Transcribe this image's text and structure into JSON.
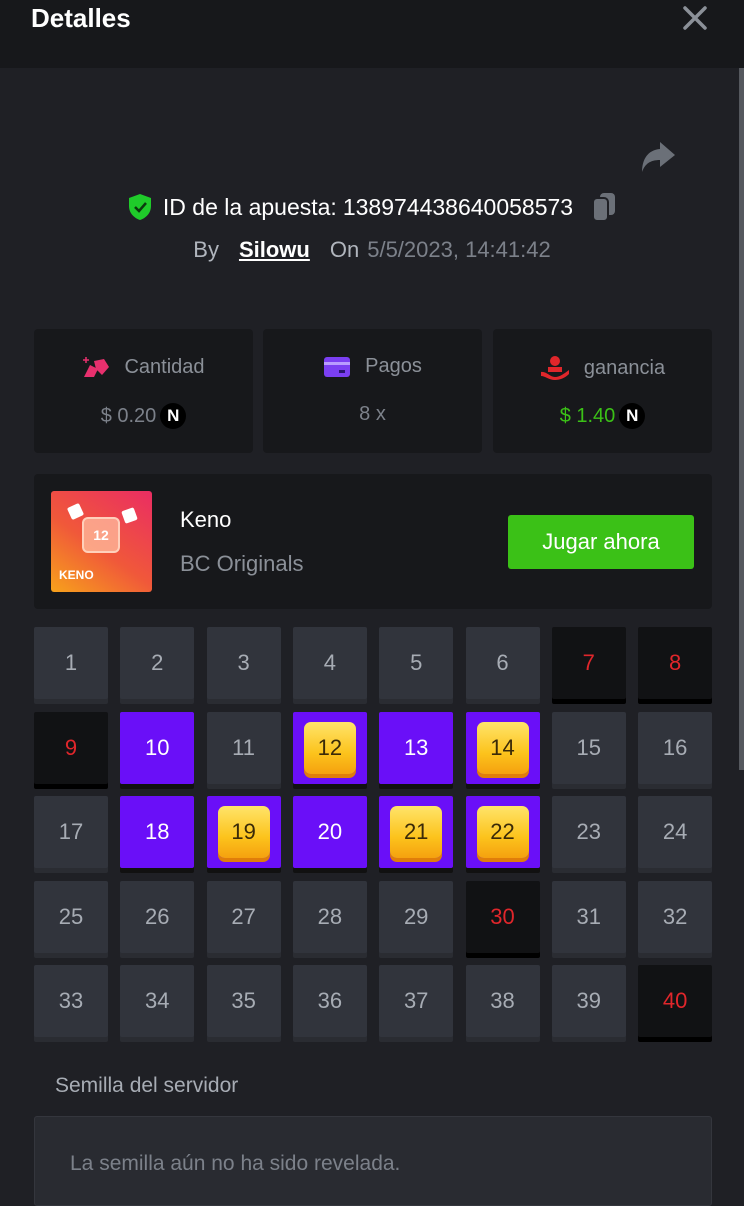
{
  "header": {
    "title": "Detalles",
    "close_icon": "close-icon"
  },
  "bet": {
    "id_label": "ID de la apuesta:",
    "id": "138974438640058573",
    "by_label": "By",
    "user": "Silowu",
    "on_label": "On",
    "date": "5/5/2023, 14:41:42"
  },
  "stats": [
    {
      "label": "Cantidad",
      "value": "$ 0.20",
      "coin": "N",
      "icon": "bet-amount-icon",
      "color": "#e8306e",
      "value_color": "#7c818a"
    },
    {
      "label": "Pagos",
      "value": "8 x",
      "icon": "payout-card-icon",
      "color": "#7b3ff2",
      "value_color": "#7c818a"
    },
    {
      "label": "ganancia",
      "value": "$ 1.40",
      "coin": "N",
      "icon": "profit-hand-icon",
      "color": "#e0262b",
      "value_color": "#3bc117"
    }
  ],
  "game": {
    "name": "Keno",
    "provider": "BC Originals",
    "thumb_text": "KENO",
    "thumb_number": "12",
    "play_label": "Jugar ahora"
  },
  "keno": {
    "numbers": [
      1,
      2,
      3,
      4,
      5,
      6,
      7,
      8,
      9,
      10,
      11,
      12,
      13,
      14,
      15,
      16,
      17,
      18,
      19,
      20,
      21,
      22,
      23,
      24,
      25,
      26,
      27,
      28,
      29,
      30,
      31,
      32,
      33,
      34,
      35,
      36,
      37,
      38,
      39,
      40
    ],
    "drawn_not_selected": [
      7,
      8,
      9,
      30,
      40
    ],
    "selected_not_hit": [
      10,
      13,
      18,
      20
    ],
    "hits": [
      12,
      14,
      19,
      21,
      22
    ]
  },
  "seed": {
    "label": "Semilla del servidor",
    "value": "La semilla aún no ha sido revelada."
  }
}
